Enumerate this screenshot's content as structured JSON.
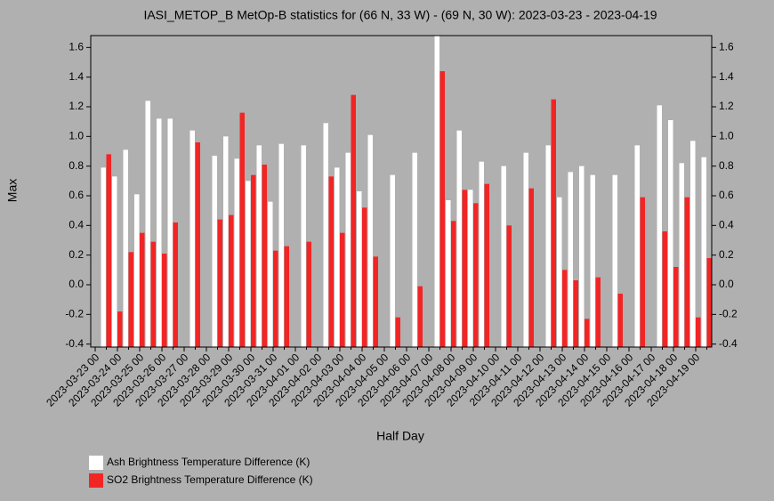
{
  "chart_data": {
    "type": "bar",
    "title": "IASI_METOP_B MetOp-B statistics for (66 N, 33 W) - (69 N, 30 W): 2023-03-23 - 2023-04-19",
    "x_label": "Half Day",
    "y_label": "Max",
    "categories": [
      "2023-03-23 00",
      null,
      "2023-03-24 00",
      null,
      "2023-03-25 00",
      null,
      "2023-03-26 00",
      null,
      "2023-03-27 00",
      null,
      "2023-03-28 00",
      null,
      "2023-03-29 00",
      null,
      "2023-03-30 00",
      null,
      "2023-03-31 00",
      null,
      "2023-04-01 00",
      null,
      "2023-04-02 00",
      null,
      "2023-04-03 00",
      null,
      "2023-04-04 00",
      null,
      "2023-04-05 00",
      null,
      "2023-04-06 00",
      null,
      "2023-04-07 00",
      null,
      "2023-04-08 00",
      null,
      "2023-04-09 00",
      null,
      "2023-04-10 00",
      null,
      "2023-04-11 00",
      null,
      "2023-04-12 00",
      null,
      "2023-04-13 00",
      null,
      "2023-04-14 00",
      null,
      "2023-04-15 00",
      null,
      "2023-04-16 00",
      null,
      "2023-04-17 00",
      null,
      "2023-04-18 00",
      null,
      "2023-04-19 00",
      null
    ],
    "series": [
      {
        "name": "Ash Brightness Temperature Difference (K)",
        "color": "#ffffff",
        "values": [
          null,
          0.79,
          0.73,
          0.91,
          0.61,
          1.24,
          1.12,
          1.12,
          null,
          1.04,
          null,
          0.87,
          1.0,
          0.85,
          0.7,
          0.94,
          0.56,
          0.95,
          null,
          0.94,
          null,
          1.09,
          0.79,
          0.89,
          0.63,
          1.01,
          null,
          0.74,
          null,
          0.89,
          null,
          1.68,
          0.57,
          1.04,
          0.64,
          0.83,
          null,
          0.8,
          null,
          0.89,
          null,
          0.94,
          0.59,
          0.76,
          0.8,
          0.74,
          null,
          0.74,
          null,
          0.94,
          null,
          1.21,
          1.11,
          0.82,
          0.97,
          0.86
        ]
      },
      {
        "name": "SO2 Brightness Temperature Difference (K)",
        "color": "#f22525",
        "values": [
          null,
          0.88,
          -0.18,
          0.22,
          0.35,
          0.29,
          0.21,
          0.42,
          null,
          0.96,
          null,
          0.44,
          0.47,
          1.16,
          0.74,
          0.81,
          0.23,
          0.26,
          null,
          0.29,
          null,
          0.73,
          0.35,
          1.28,
          0.52,
          0.19,
          null,
          -0.22,
          null,
          -0.01,
          null,
          1.44,
          0.43,
          0.64,
          0.55,
          0.68,
          null,
          0.4,
          null,
          0.65,
          null,
          1.25,
          0.1,
          0.03,
          -0.23,
          0.05,
          null,
          -0.06,
          null,
          0.59,
          null,
          0.36,
          0.12,
          0.59,
          -0.22,
          0.18
        ]
      }
    ],
    "ylim": [
      -0.42,
      1.68
    ],
    "yticks": [
      -0.4,
      -0.2,
      {
        "value": 0,
        "label": "0.0"
      },
      0.2,
      0.4,
      0.6,
      0.8,
      {
        "value": 1,
        "label": "1.0"
      },
      1.2,
      1.4,
      1.6
    ]
  }
}
